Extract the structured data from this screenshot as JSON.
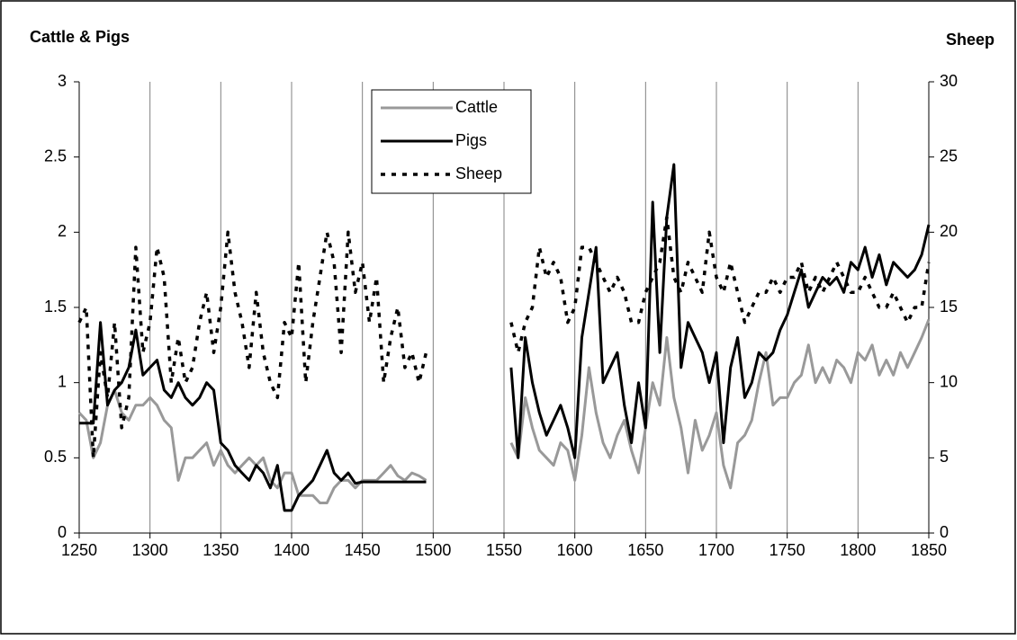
{
  "chart_data": {
    "type": "line",
    "y_label": "Cattle & Pigs",
    "y2_label": "Sheep",
    "x": [
      1250,
      1255,
      1260,
      1265,
      1270,
      1275,
      1280,
      1285,
      1290,
      1295,
      1300,
      1305,
      1310,
      1315,
      1320,
      1325,
      1330,
      1335,
      1340,
      1345,
      1350,
      1355,
      1360,
      1365,
      1370,
      1375,
      1380,
      1385,
      1390,
      1395,
      1400,
      1405,
      1410,
      1415,
      1420,
      1425,
      1430,
      1435,
      1440,
      1445,
      1450,
      1455,
      1460,
      1465,
      1470,
      1475,
      1480,
      1485,
      1490,
      1495,
      1500,
      1505,
      1510,
      1515,
      1520,
      1525,
      1530,
      1535,
      1540,
      1545,
      1550,
      1555,
      1560,
      1565,
      1570,
      1575,
      1580,
      1585,
      1590,
      1595,
      1600,
      1605,
      1610,
      1615,
      1620,
      1625,
      1630,
      1635,
      1640,
      1645,
      1650,
      1655,
      1660,
      1665,
      1670,
      1675,
      1680,
      1685,
      1690,
      1695,
      1700,
      1705,
      1710,
      1715,
      1720,
      1725,
      1730,
      1735,
      1740,
      1745,
      1750,
      1755,
      1760,
      1765,
      1770,
      1775,
      1780,
      1785,
      1790,
      1795,
      1800,
      1805,
      1810,
      1815,
      1820,
      1825,
      1830,
      1835,
      1840,
      1845,
      1850
    ],
    "series": [
      {
        "name": "Cattle",
        "color": "#999999",
        "style": "solid",
        "values": [
          0.8,
          0.75,
          0.5,
          0.6,
          0.85,
          0.95,
          0.8,
          0.75,
          0.85,
          0.85,
          0.9,
          0.85,
          0.75,
          0.7,
          0.35,
          0.5,
          0.5,
          0.55,
          0.6,
          0.45,
          0.55,
          0.45,
          0.4,
          0.45,
          0.5,
          0.45,
          0.5,
          0.35,
          0.3,
          0.4,
          0.4,
          0.25,
          0.25,
          0.25,
          0.2,
          0.2,
          0.3,
          0.35,
          0.35,
          0.3,
          0.35,
          0.35,
          0.35,
          0.4,
          0.45,
          0.38,
          0.35,
          0.4,
          0.38,
          0.35,
          null,
          null,
          null,
          null,
          null,
          null,
          null,
          null,
          null,
          null,
          null,
          0.6,
          0.5,
          0.9,
          0.7,
          0.55,
          0.5,
          0.45,
          0.6,
          0.55,
          0.35,
          0.65,
          1.1,
          0.8,
          0.6,
          0.5,
          0.65,
          0.75,
          0.55,
          0.4,
          0.7,
          1.0,
          0.85,
          1.3,
          0.9,
          0.7,
          0.4,
          0.75,
          0.55,
          0.65,
          0.8,
          0.45,
          0.3,
          0.6,
          0.65,
          0.75,
          1.0,
          1.2,
          0.85,
          0.9,
          0.9,
          1.0,
          1.05,
          1.25,
          1.0,
          1.1,
          1.0,
          1.15,
          1.1,
          1.0,
          1.2,
          1.15,
          1.25,
          1.05,
          1.15,
          1.05,
          1.2,
          1.1,
          1.2,
          1.3,
          1.42
        ]
      },
      {
        "name": "Pigs",
        "color": "#000000",
        "style": "solid",
        "values": [
          0.73,
          0.73,
          0.73,
          1.4,
          0.85,
          0.95,
          1.0,
          1.1,
          1.35,
          1.05,
          1.1,
          1.15,
          0.95,
          0.9,
          1.0,
          0.9,
          0.85,
          0.9,
          1.0,
          0.95,
          0.6,
          0.55,
          0.45,
          0.4,
          0.35,
          0.45,
          0.4,
          0.3,
          0.45,
          0.15,
          0.15,
          0.25,
          0.3,
          0.35,
          0.45,
          0.55,
          0.4,
          0.35,
          0.4,
          0.33,
          0.34,
          0.34,
          0.34,
          0.34,
          0.34,
          0.34,
          0.34,
          0.34,
          0.34,
          0.34,
          null,
          null,
          null,
          null,
          null,
          null,
          null,
          null,
          null,
          null,
          null,
          1.1,
          0.5,
          1.3,
          1.0,
          0.8,
          0.65,
          0.75,
          0.85,
          0.7,
          0.5,
          1.3,
          1.6,
          1.9,
          1.0,
          1.1,
          1.2,
          0.85,
          0.6,
          1.0,
          0.7,
          2.2,
          1.2,
          2.1,
          2.45,
          1.1,
          1.4,
          1.3,
          1.2,
          1.0,
          1.2,
          0.6,
          1.1,
          1.3,
          0.9,
          1.0,
          1.2,
          1.15,
          1.2,
          1.35,
          1.45,
          1.6,
          1.75,
          1.5,
          1.6,
          1.7,
          1.65,
          1.7,
          1.6,
          1.8,
          1.75,
          1.9,
          1.7,
          1.85,
          1.65,
          1.8,
          1.75,
          1.7,
          1.75,
          1.85,
          2.05
        ]
      },
      {
        "name": "Sheep",
        "color": "#000000",
        "style": "dashed",
        "axis": "y2",
        "values": [
          14,
          15,
          5,
          12,
          9,
          14,
          7,
          9,
          19,
          12,
          14,
          19,
          17,
          10,
          13,
          10,
          11,
          14,
          16,
          12,
          15,
          20,
          16,
          14,
          11,
          16,
          12,
          10,
          9,
          14,
          13,
          18,
          10,
          14,
          17,
          20,
          18,
          12,
          20,
          16,
          18,
          14,
          17,
          10,
          13,
          15,
          11,
          12,
          10,
          12,
          null,
          null,
          null,
          null,
          null,
          null,
          null,
          null,
          null,
          null,
          null,
          14,
          12,
          14,
          15,
          19,
          17,
          18,
          17,
          14,
          15,
          19,
          19,
          18,
          17,
          16,
          17,
          16,
          14,
          14,
          16,
          17,
          18,
          21,
          17,
          16,
          18,
          17,
          16,
          20,
          17,
          16,
          18,
          16,
          14,
          15,
          16,
          16,
          17,
          16,
          17,
          17,
          18,
          16,
          17,
          16,
          17,
          18,
          17,
          16,
          16,
          17,
          16,
          15,
          15,
          16,
          15,
          14,
          15,
          15,
          18
        ]
      }
    ],
    "xlim": [
      1250,
      1850
    ],
    "xticks": [
      1250,
      1300,
      1350,
      1400,
      1450,
      1500,
      1550,
      1600,
      1650,
      1700,
      1750,
      1800,
      1850
    ],
    "ylim": [
      0,
      3
    ],
    "yticks": [
      0,
      0.5,
      1,
      1.5,
      2,
      2.5,
      3
    ],
    "y2lim": [
      0,
      30
    ],
    "y2ticks": [
      0,
      5,
      10,
      15,
      20,
      25,
      30
    ],
    "grid": "x"
  }
}
